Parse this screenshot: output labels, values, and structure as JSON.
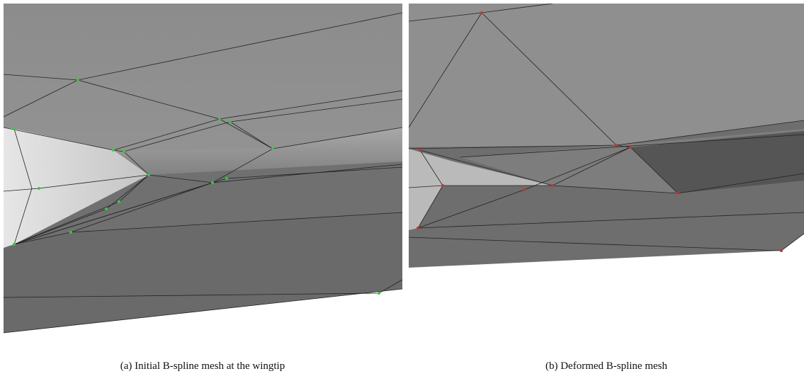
{
  "figure": {
    "panels": [
      {
        "caption": "(a) Initial B-spline mesh at the wingtip"
      },
      {
        "caption": "(b) Deformed B-spline mesh"
      }
    ]
  }
}
